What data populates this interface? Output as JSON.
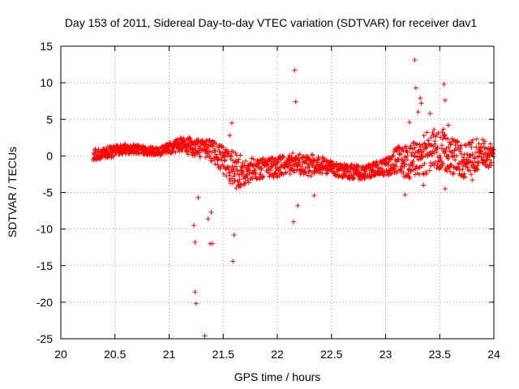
{
  "chart_data": {
    "type": "scatter",
    "title": "Day 153 of 2011, Sidereal Day-to-day VTEC variation (SDTVAR) for receiver dav1",
    "xlabel": "GPS time / hours",
    "ylabel": "SDTVAR / TECUs",
    "xlim": [
      20,
      24
    ],
    "ylim": [
      -25,
      15
    ],
    "xticks": [
      20,
      20.5,
      21,
      21.5,
      22,
      22.5,
      23,
      23.5,
      24
    ],
    "xtick_labels": [
      "20",
      "20.5",
      "21",
      "21.5",
      "22",
      "22.5",
      "23",
      "23.5",
      "24"
    ],
    "yticks": [
      -25,
      -20,
      -15,
      -10,
      -5,
      0,
      5,
      10,
      15
    ],
    "ytick_labels": [
      "-25",
      "-20",
      "-15",
      "-10",
      "-5",
      "0",
      "5",
      "10",
      "15"
    ],
    "grid": true,
    "marker": "+",
    "color": "#ff0000",
    "series": [
      {
        "name": "dav1",
        "dense_trend": {
          "x": [
            20.3,
            20.45,
            20.6,
            20.75,
            20.9,
            21.0,
            21.1,
            21.2,
            21.3,
            21.4,
            21.5,
            21.6,
            21.7,
            21.8,
            21.9,
            22.0,
            22.1,
            22.2,
            22.3,
            22.4,
            22.5,
            22.6,
            22.7,
            22.8,
            22.9,
            23.0,
            23.1,
            23.2,
            23.3,
            23.4,
            23.5,
            23.6,
            23.7,
            23.8,
            23.9,
            24.0
          ],
          "y": [
            0.2,
            0.5,
            1.0,
            0.8,
            0.5,
            1.0,
            1.5,
            1.3,
            1.0,
            0.6,
            -0.5,
            -2.0,
            -2.2,
            -1.8,
            -1.6,
            -1.5,
            -1.0,
            -1.2,
            -1.3,
            -1.2,
            -1.6,
            -2.0,
            -2.2,
            -2.3,
            -1.8,
            -1.5,
            -0.5,
            -0.8,
            -0.3,
            0.5,
            1.2,
            0.0,
            -0.6,
            -0.2,
            0.3,
            0.0
          ],
          "spread": [
            0.8,
            0.8,
            0.7,
            0.6,
            0.6,
            0.8,
            1.0,
            1.2,
            1.2,
            1.5,
            2.0,
            2.5,
            2.0,
            1.5,
            1.5,
            1.5,
            1.5,
            1.5,
            1.5,
            1.2,
            1.0,
            1.0,
            1.0,
            0.9,
            1.0,
            1.2,
            2.0,
            2.5,
            2.5,
            3.0,
            3.0,
            2.5,
            2.5,
            2.5,
            2.0,
            1.5
          ]
        },
        "outliers": [
          {
            "x": 21.23,
            "y": -9.5
          },
          {
            "x": 21.24,
            "y": -11.8
          },
          {
            "x": 21.24,
            "y": -18.6
          },
          {
            "x": 21.25,
            "y": -20.2
          },
          {
            "x": 21.27,
            "y": -5.7
          },
          {
            "x": 21.33,
            "y": -24.6
          },
          {
            "x": 21.36,
            "y": -8.6
          },
          {
            "x": 21.38,
            "y": -12.0
          },
          {
            "x": 21.39,
            "y": -7.7
          },
          {
            "x": 21.4,
            "y": -12.0
          },
          {
            "x": 21.56,
            "y": 2.8
          },
          {
            "x": 21.58,
            "y": 4.5
          },
          {
            "x": 21.59,
            "y": -14.4
          },
          {
            "x": 21.6,
            "y": -10.8
          },
          {
            "x": 22.15,
            "y": -9.0
          },
          {
            "x": 22.16,
            "y": 11.7
          },
          {
            "x": 22.17,
            "y": 7.4
          },
          {
            "x": 22.19,
            "y": -6.8
          },
          {
            "x": 22.34,
            "y": -5.4
          },
          {
            "x": 23.18,
            "y": -5.3
          },
          {
            "x": 23.22,
            "y": 4.6
          },
          {
            "x": 23.27,
            "y": 13.1
          },
          {
            "x": 23.28,
            "y": 9.3
          },
          {
            "x": 23.3,
            "y": 6.0
          },
          {
            "x": 23.32,
            "y": 7.9
          },
          {
            "x": 23.33,
            "y": 7.2
          },
          {
            "x": 23.35,
            "y": -4.0
          },
          {
            "x": 23.41,
            "y": 5.8
          },
          {
            "x": 23.54,
            "y": 9.8
          },
          {
            "x": 23.55,
            "y": 7.6
          },
          {
            "x": 23.55,
            "y": -4.5
          },
          {
            "x": 23.58,
            "y": 4.2
          },
          {
            "x": 23.8,
            "y": -3.3
          }
        ]
      }
    ]
  }
}
